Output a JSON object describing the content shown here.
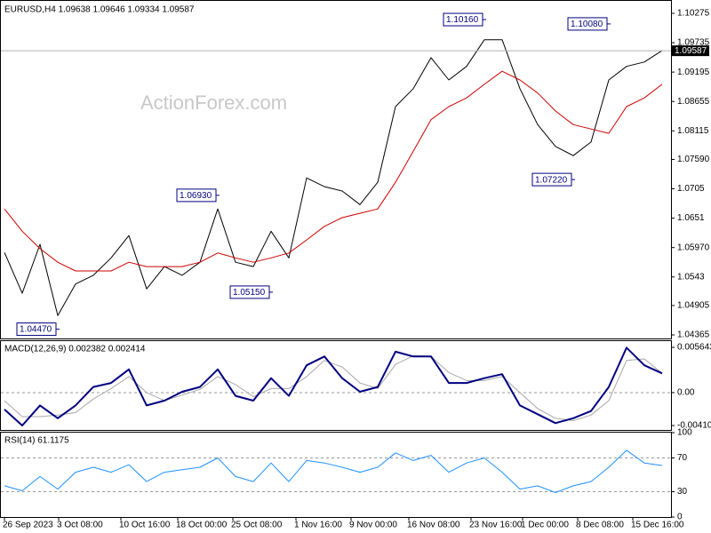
{
  "chart_data": [
    {
      "type": "line",
      "title": "EURUSD,H4 1.09638 1.09646 1.09334 1.09587",
      "watermark": "ActionForex.com",
      "x": [
        0,
        1,
        2,
        3,
        4,
        5,
        6,
        7,
        8,
        9,
        10,
        11,
        12,
        13,
        14,
        15,
        16,
        17,
        18,
        19,
        20,
        21,
        22,
        23,
        24,
        25,
        26,
        27,
        28,
        29,
        30,
        31,
        32,
        33,
        34,
        35,
        36,
        37
      ],
      "xlim": [
        0,
        37
      ],
      "ylim": [
        1.04316,
        1.10487
      ],
      "yticks": [
        1.10275,
        1.09735,
        1.09195,
        1.08655,
        1.08115,
        {
          "value": 1.0759,
          "label": "1.07590"
        },
        1.0705,
        1.0651,
        {
          "value": 1.0597,
          "label": "1.05970"
        },
        1.0543,
        1.04905,
        1.04365
      ],
      "series": [
        {
          "color": "#000000",
          "values": [
            1.0588,
            1.0513,
            1.0603,
            1.0472,
            1.053,
            1.0546,
            1.0578,
            1.0619,
            1.0521,
            1.0562,
            1.0546,
            1.057,
            1.0668,
            1.057,
            1.0562,
            1.0627,
            1.0578,
            1.0725,
            1.0709,
            1.0701,
            1.0676,
            1.0717,
            1.0856,
            1.0889,
            1.0946,
            1.0905,
            1.093,
            1.0979,
            1.0979,
            1.0889,
            1.0823,
            1.0783,
            1.0766,
            1.0791,
            1.0905,
            1.093,
            1.0938,
            1.0959
          ]
        },
        {
          "color": "#cc0000",
          "values": [
            1.0668,
            1.0627,
            1.0595,
            1.057,
            1.0554,
            1.0554,
            1.0554,
            1.057,
            1.0562,
            1.0562,
            1.0562,
            1.057,
            1.0587,
            1.0578,
            1.057,
            1.0578,
            1.0587,
            1.0611,
            1.0636,
            1.0652,
            1.066,
            1.0668,
            1.0717,
            1.0774,
            1.0832,
            1.0856,
            1.0872,
            1.0897,
            1.0921,
            1.0905,
            1.0881,
            1.0848,
            1.0823,
            1.0815,
            1.0807,
            1.0856,
            1.0872,
            1.0897
          ]
        }
      ],
      "annotations": [
        {
          "label": "1.10160",
          "value": 1.1016,
          "x": 27
        },
        {
          "label": "1.10080",
          "value": 1.1008,
          "x": 34
        },
        {
          "label": "1.06930",
          "value": 1.0693,
          "x": 12
        },
        {
          "label": "1.05150",
          "value": 1.0515,
          "x": 15
        },
        {
          "label": "1.07220",
          "value": 1.0722,
          "x": 32
        },
        {
          "label": "1.04470",
          "value": 1.0447,
          "x": 3
        }
      ],
      "last_price": 1.09587
    },
    {
      "type": "line",
      "title": "MACD(12,26,9) 0.002382 0.002414",
      "x": [
        0,
        1,
        2,
        3,
        4,
        5,
        6,
        7,
        8,
        9,
        10,
        11,
        12,
        13,
        14,
        15,
        16,
        17,
        18,
        19,
        20,
        21,
        22,
        23,
        24,
        25,
        26,
        27,
        28,
        29,
        30,
        31,
        32,
        33,
        34,
        35,
        36,
        37
      ],
      "xlim": [
        0,
        37
      ],
      "ylim": [
        -0.004658,
        0.006418
      ],
      "yticks": [
        0.005643,
        {
          "value": 0,
          "label": "0.00"
        },
        -0.004104
      ],
      "levels": [
        0
      ],
      "series": [
        {
          "color": "#a8a8a8",
          "width": 1,
          "values": [
            -0.001,
            -0.003,
            -0.003,
            -0.0028,
            -0.0025,
            -0.0008,
            0.0005,
            0.002,
            0.0,
            -0.001,
            -0.0003,
            0.0004,
            0.002,
            0.001,
            -0.0005,
            0.0005,
            0.0005,
            0.002,
            0.004,
            0.0032,
            0.0012,
            0.0005,
            0.0035,
            0.0046,
            0.0045,
            0.0025,
            0.0015,
            0.0015,
            0.002,
            0.0,
            -0.002,
            -0.0032,
            -0.0035,
            -0.0028,
            -0.001,
            0.004,
            0.0042,
            0.0024
          ]
        },
        {
          "color": "#000080",
          "width": 2,
          "values": [
            -0.0021,
            -0.0041,
            -0.0016,
            -0.0032,
            -0.0016,
            0.0007,
            0.0012,
            0.0029,
            -0.0016,
            -0.001,
            0.0001,
            0.0007,
            0.0029,
            -0.0004,
            -0.001,
            0.0018,
            -0.0004,
            0.0034,
            0.0045,
            0.0018,
            0.0001,
            0.0007,
            0.0051,
            0.0045,
            0.0045,
            0.0012,
            0.0012,
            0.0018,
            0.0023,
            -0.0016,
            -0.0027,
            -0.0038,
            -0.0032,
            -0.0023,
            0.0007,
            0.0056,
            0.0034,
            0.0024
          ]
        }
      ]
    },
    {
      "type": "line",
      "title": "RSI(14) 61.1175",
      "x": [
        0,
        1,
        2,
        3,
        4,
        5,
        6,
        7,
        8,
        9,
        10,
        11,
        12,
        13,
        14,
        15,
        16,
        17,
        18,
        19,
        20,
        21,
        22,
        23,
        24,
        25,
        26,
        27,
        28,
        29,
        30,
        31,
        32,
        33,
        34,
        35,
        36,
        37
      ],
      "xlim": [
        0,
        37
      ],
      "ylim": [
        0,
        100
      ],
      "yticks": [
        100,
        70,
        30,
        0
      ],
      "levels": [
        70,
        30
      ],
      "series": [
        {
          "color": "#1e90ff",
          "width": 1,
          "values": [
            37,
            31,
            48,
            33,
            53,
            59,
            53,
            62,
            42,
            53,
            56,
            59,
            70,
            48,
            42,
            64,
            42,
            67,
            64,
            59,
            53,
            59,
            76,
            67,
            73,
            53,
            64,
            70,
            53,
            33,
            37,
            29,
            37,
            42,
            59,
            79,
            64,
            61
          ]
        }
      ],
      "xticks": [
        {
          "value": 0,
          "label": "26 Sep 2023"
        },
        {
          "value": 3.05,
          "label": "3 Oct 08:00"
        },
        {
          "value": 6.55,
          "label": "10 Oct 16:00"
        },
        {
          "value": 9.75,
          "label": "18 Oct 00:00"
        },
        {
          "value": 12.85,
          "label": "25 Oct 08:00"
        },
        {
          "value": 16.4,
          "label": "1 Nov 16:00"
        },
        {
          "value": 19.5,
          "label": "9 Nov 00:00"
        },
        {
          "value": 22.75,
          "label": "16 Nov 08:00"
        },
        {
          "value": 26.25,
          "label": "23 Nov 16:00"
        },
        {
          "value": 29.15,
          "label": "1 Dec 00:00"
        },
        {
          "value": 32.25,
          "label": "8 Dec 08:00"
        },
        {
          "value": 35.35,
          "label": "15 Dec 16:00"
        }
      ]
    }
  ]
}
